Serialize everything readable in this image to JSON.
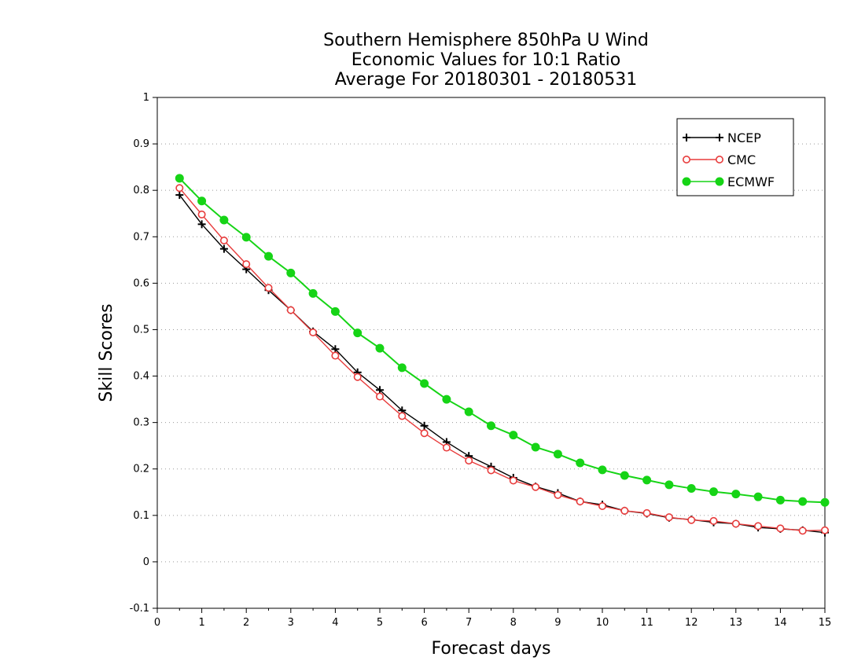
{
  "chart_data": {
    "type": "line",
    "title": [
      "Southern Hemisphere 850hPa U Wind",
      "Economic Values for 10:1 Ratio",
      "Average For 20180301 - 20180531"
    ],
    "xlabel": "Forecast days",
    "ylabel": "Skill Scores",
    "xlim": [
      0,
      15
    ],
    "ylim": [
      -0.1,
      1
    ],
    "xticks": [
      "0",
      "1",
      "2",
      "3",
      "4",
      "5",
      "6",
      "7",
      "8",
      "9",
      "10",
      "11",
      "12",
      "13",
      "14",
      "15"
    ],
    "yticks": [
      "-0.1",
      "0",
      "0.1",
      "0.2",
      "0.3",
      "0.4",
      "0.5",
      "0.6",
      "0.7",
      "0.8",
      "0.9",
      "1"
    ],
    "grid": true,
    "legend_position": "top-right",
    "x": [
      0.5,
      1,
      1.5,
      2,
      2.5,
      3,
      3.5,
      4,
      4.5,
      5,
      5.5,
      6,
      6.5,
      7,
      7.5,
      8,
      8.5,
      9,
      9.5,
      10,
      10.5,
      11,
      11.5,
      12,
      12.5,
      13,
      13.5,
      14,
      14.5,
      15
    ],
    "series": [
      {
        "name": "NCEP",
        "color": "#000000",
        "marker": "plus",
        "values": [
          0.79,
          0.727,
          0.674,
          0.63,
          0.585,
          0.542,
          0.496,
          0.458,
          0.408,
          0.37,
          0.326,
          0.293,
          0.258,
          0.228,
          0.205,
          0.181,
          0.162,
          0.148,
          0.13,
          0.123,
          0.11,
          0.104,
          0.095,
          0.091,
          0.085,
          0.082,
          0.074,
          0.071,
          0.068,
          0.063
        ]
      },
      {
        "name": "CMC",
        "color": "#e83c3c",
        "marker": "open-circle",
        "values": [
          0.805,
          0.748,
          0.692,
          0.641,
          0.59,
          0.542,
          0.494,
          0.444,
          0.398,
          0.356,
          0.314,
          0.277,
          0.246,
          0.218,
          0.197,
          0.175,
          0.161,
          0.144,
          0.13,
          0.12,
          0.11,
          0.105,
          0.096,
          0.09,
          0.088,
          0.082,
          0.077,
          0.072,
          0.067,
          0.068
        ]
      },
      {
        "name": "ECMWF",
        "color": "#16d416",
        "marker": "filled-circle",
        "values": [
          0.826,
          0.777,
          0.736,
          0.699,
          0.658,
          0.622,
          0.578,
          0.539,
          0.493,
          0.46,
          0.418,
          0.384,
          0.35,
          0.323,
          0.293,
          0.273,
          0.247,
          0.232,
          0.213,
          0.198,
          0.186,
          0.176,
          0.166,
          0.158,
          0.151,
          0.146,
          0.14,
          0.133,
          0.13,
          0.128
        ]
      }
    ]
  }
}
